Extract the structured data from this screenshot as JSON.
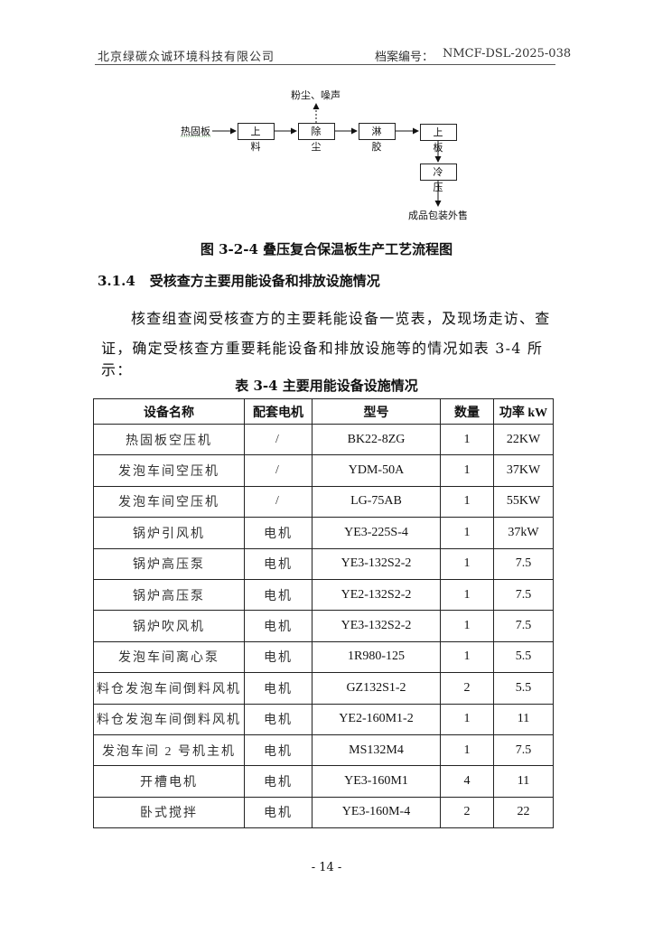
{
  "header": {
    "company": "北京绿碳众诚环境科技有限公司",
    "archive_label": "档案编号：",
    "archive_no": "NMCF-DSL-2025-038"
  },
  "flow": {
    "input": "热固板",
    "emission": "粉尘、噪声",
    "steps": [
      "上 料",
      "除 尘",
      "淋 胶",
      "上 板",
      "冷 压"
    ],
    "output": "成品包装外售"
  },
  "figure_caption": "图 3-2-4 叠压复合保温板生产工艺流程图",
  "section": {
    "number": "3.1.4",
    "title": "受核查方主要用能设备和排放设施情况"
  },
  "paragraph": [
    "核查组查阅受核查方的主要耗能设备一览表，及现场走访、查",
    "证，确定受核查方重要耗能设备和排放设施等的情况如表 3-4 所示："
  ],
  "table_caption": "表 3-4  主要用能设备设施情况",
  "table": {
    "headers": [
      "设备名称",
      "配套电机",
      "型号",
      "数量",
      "功率 kW"
    ],
    "rows": [
      [
        "热固板空压机",
        "/",
        "BK22-8ZG",
        "1",
        "22KW"
      ],
      [
        "发泡车间空压机",
        "/",
        "YDM-50A",
        "1",
        "37KW"
      ],
      [
        "发泡车间空压机",
        "/",
        "LG-75AB",
        "1",
        "55KW"
      ],
      [
        "锅炉引风机",
        "电机",
        "YE3-225S-4",
        "1",
        "37kW"
      ],
      [
        "锅炉高压泵",
        "电机",
        "YE3-132S2-2",
        "1",
        "7.5"
      ],
      [
        "锅炉高压泵",
        "电机",
        "YE2-132S2-2",
        "1",
        "7.5"
      ],
      [
        "锅炉吹风机",
        "电机",
        "YE3-132S2-2",
        "1",
        "7.5"
      ],
      [
        "发泡车间离心泵",
        "电机",
        "1R980-125",
        "1",
        "5.5"
      ],
      [
        "料仓发泡车间倒料风机",
        "电机",
        "GZ132S1-2",
        "2",
        "5.5"
      ],
      [
        "料仓发泡车间倒料风机",
        "电机",
        "YE2-160M1-2",
        "1",
        "11"
      ],
      [
        "发泡车间 2 号机主机",
        "电机",
        "MS132M4",
        "1",
        "7.5"
      ],
      [
        "开槽电机",
        "电机",
        "YE3-160M1",
        "4",
        "11"
      ],
      [
        "卧式搅拌",
        "电机",
        "YE3-160M-4",
        "2",
        "22"
      ]
    ]
  },
  "page_number": "- 14 -"
}
